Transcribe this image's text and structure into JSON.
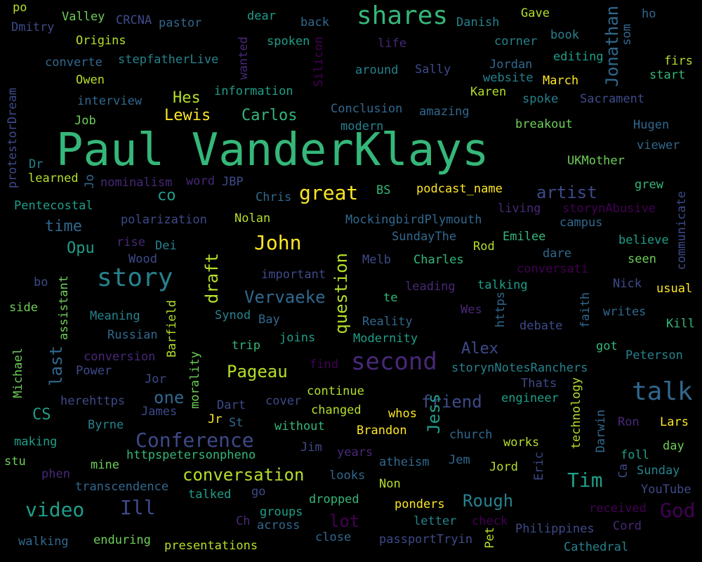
{
  "words": [
    "Paul VanderKlays",
    "shares",
    "talk",
    "story",
    "second",
    "great",
    "John",
    "Conference",
    "video",
    "Ill",
    "God",
    "Tim",
    "Jonathan",
    "Lewis",
    "Carlos",
    "Hes",
    "po",
    "Dmitry",
    "Valley",
    "CRCNA",
    "pastor",
    "dear",
    "back",
    "Danish",
    "Gave",
    "ho",
    "Origins",
    "converte",
    "stepfatherLive",
    "spoken",
    "life",
    "corner",
    "book",
    "editing",
    "firs",
    "start",
    "Owen",
    "interview",
    "information",
    "Silicon",
    "around",
    "Sally",
    "Jordan",
    "website",
    "March",
    "Job",
    "Conclusion",
    "amazing",
    "Karen",
    "spoke",
    "Sacrament",
    "modern",
    "breakout",
    "Hugen",
    "viewer",
    "protestorDream",
    "Dr",
    "learned",
    "nominalism",
    "word",
    "JBP",
    "UKMother",
    "Chris",
    "BS",
    "podcast_name",
    "artist",
    "grew",
    "Pentecostal",
    "co",
    "living",
    "storynAbusive",
    "communicate",
    "time",
    "polarization",
    "Nolan",
    "MockingbirdPlymouth",
    "campus",
    "Opu",
    "rise",
    "Dei",
    "SundayThe",
    "Emilee",
    "believe",
    "Wood",
    "Melb",
    "Charles",
    "Rod",
    "dare",
    "seen",
    "conversati",
    "important",
    "leading",
    "talking",
    "Nick",
    "usual",
    "bo",
    "side",
    "Vervaeke",
    "te",
    "Meaning",
    "Synod",
    "Bay",
    "Reality",
    "Wes",
    "https",
    "debate",
    "faith",
    "writes",
    "Kill",
    "Russian",
    "trip",
    "joins",
    "Modernity",
    "got",
    "Alex",
    "Peterson",
    "conversion",
    "Power",
    "find",
    "storynNotesRanchers",
    "Michael",
    "last",
    "Pageau",
    "Jor",
    "one",
    "continue",
    "Thats",
    "engineer",
    "herehttps",
    "James",
    "changed",
    "whos",
    "friend",
    "Dart",
    "cover",
    "Jess",
    "Byrne",
    "Jr",
    "St",
    "without",
    "Brandon",
    "Ron",
    "Lars",
    "making",
    "church",
    "works",
    "day",
    "httpspetersonpheno",
    "stu",
    "mine",
    "years",
    "Jem",
    "Jord",
    "atheism",
    "phen",
    "conversation",
    "looks",
    "Eric",
    "Sunday",
    "transcendence",
    "Non",
    "YouTube",
    "talked",
    "go",
    "dropped",
    "ponders",
    "Rough",
    "received",
    "groups",
    "Ch",
    "across",
    "lot",
    "letter",
    "check",
    "Philippines",
    "Cord",
    "walking",
    "enduring",
    "presentations",
    "close",
    "passportTryin",
    "Pet",
    "Cathedral",
    "wanted",
    "som",
    "Jo",
    "draft",
    "question",
    "assistant",
    "Barfield",
    "morality",
    "technology",
    "Darwin",
    "Ca",
    "foll"
  ]
}
